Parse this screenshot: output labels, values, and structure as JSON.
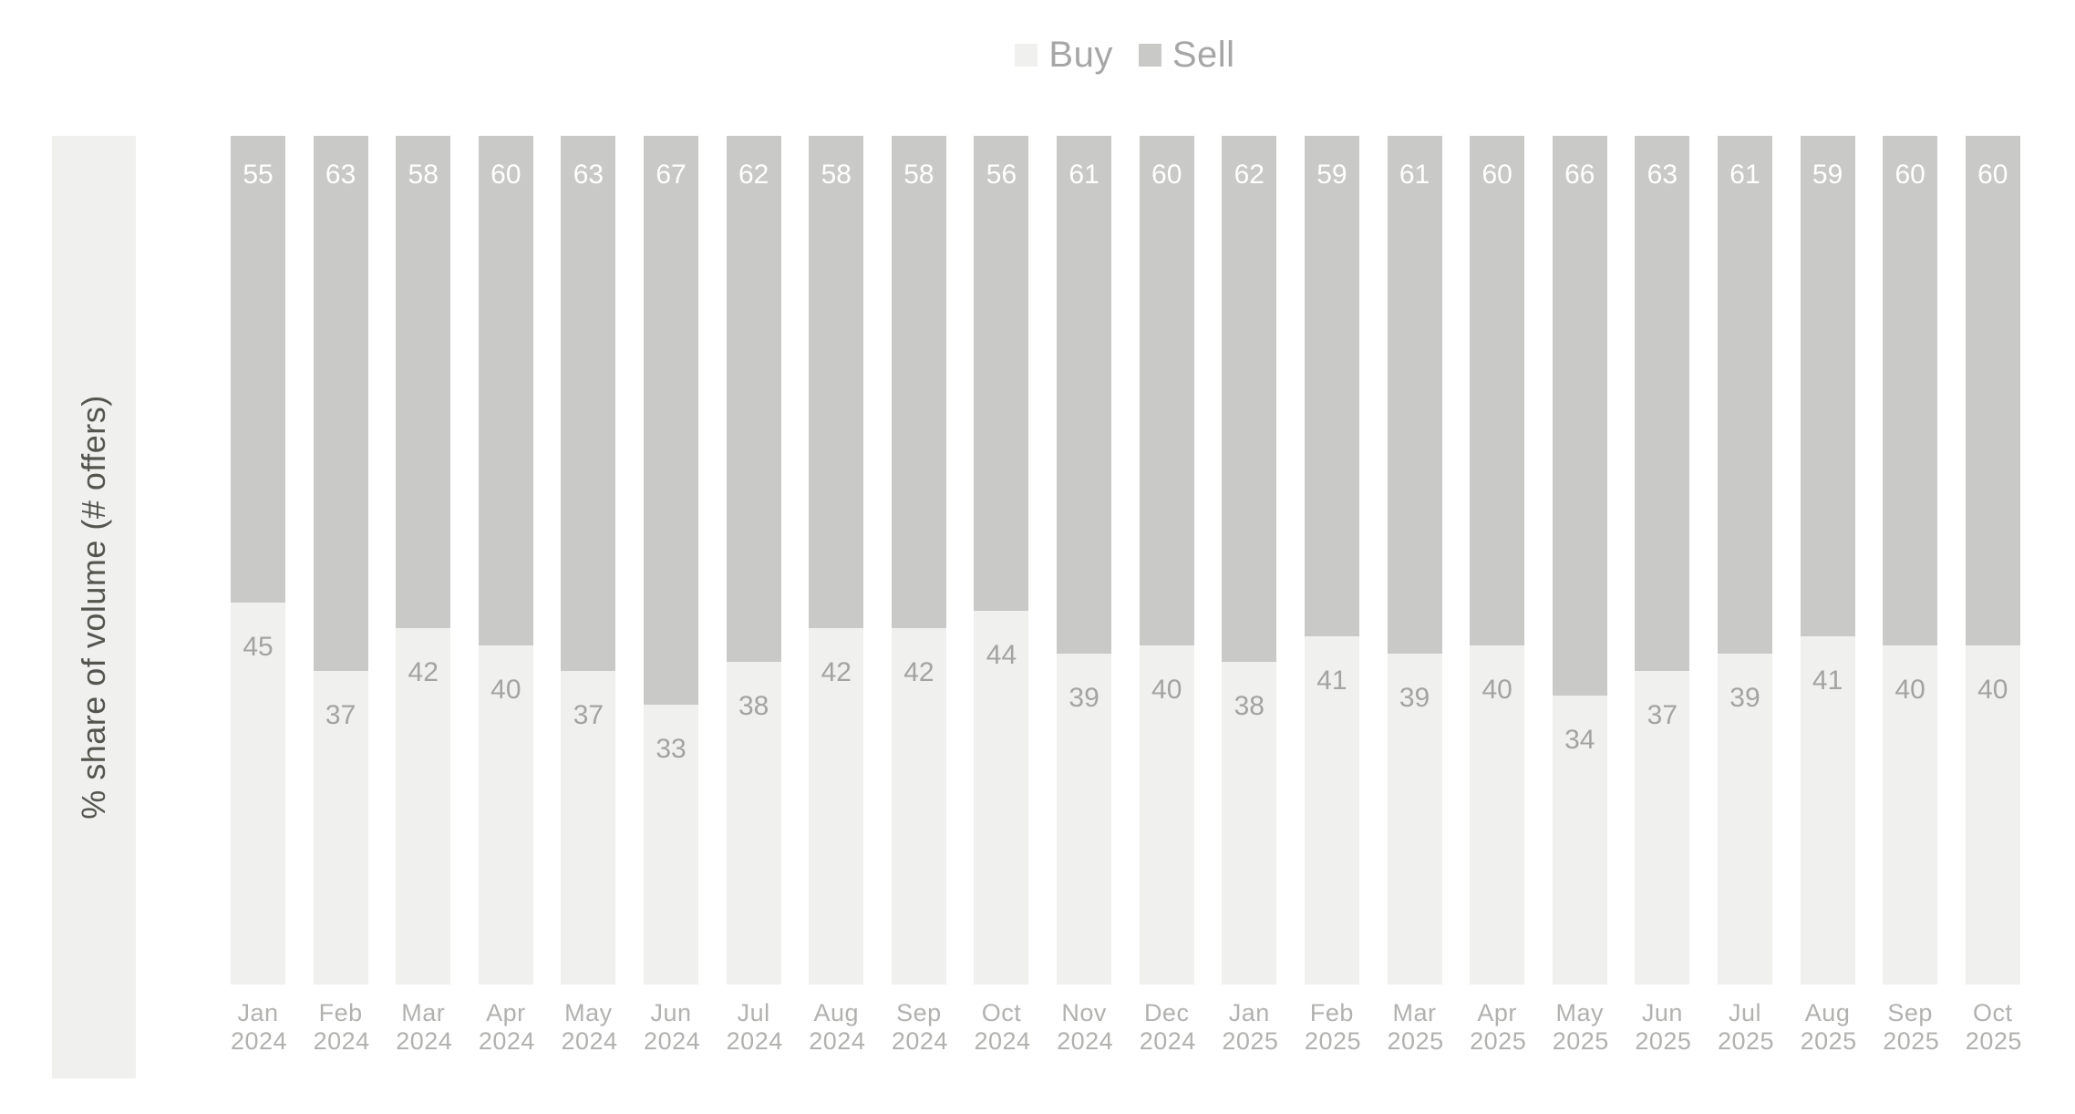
{
  "legend": {
    "items": [
      {
        "name": "Buy",
        "swatch_color": "#f0f0ee"
      },
      {
        "name": "Sell",
        "swatch_color": "#c9c9c7"
      }
    ]
  },
  "y_axis": {
    "label": "% share of volume (# offers)"
  },
  "chart_data": {
    "type": "bar",
    "stacked": true,
    "unit": "%",
    "title": "",
    "xlabel": "",
    "ylabel": "% share of volume (# offers)",
    "ylim": [
      0,
      100
    ],
    "grid": false,
    "legend_position": "top-center",
    "value_labels": "inside-top-of-each-segment",
    "categories": [
      "Jan 2024",
      "Feb 2024",
      "Mar 2024",
      "Apr 2024",
      "May 2024",
      "Jun 2024",
      "Jul 2024",
      "Aug 2024",
      "Sep 2024",
      "Oct 2024",
      "Nov 2024",
      "Dec 2024",
      "Jan 2025",
      "Feb 2025",
      "Mar 2025",
      "Apr 2025",
      "May 2025",
      "Jun 2025",
      "Jul 2025",
      "Aug 2025",
      "Sep 2025",
      "Oct 2025"
    ],
    "series": [
      {
        "name": "Buy",
        "color": "#f0f0ee",
        "values": [
          45,
          37,
          42,
          40,
          37,
          33,
          38,
          42,
          42,
          44,
          39,
          40,
          38,
          41,
          39,
          40,
          34,
          37,
          39,
          41,
          40,
          40
        ]
      },
      {
        "name": "Sell",
        "color": "#c9c9c7",
        "values": [
          55,
          63,
          58,
          60,
          63,
          67,
          62,
          58,
          58,
          56,
          61,
          60,
          62,
          59,
          61,
          60,
          66,
          63,
          61,
          59,
          60,
          60
        ]
      }
    ]
  },
  "colors": {
    "buy_segment": "#f0f0ee",
    "sell_segment": "#c9c9c7",
    "sell_value_label": "#ffffff",
    "buy_value_label": "#a3a3a1",
    "tick_label": "#b1b1af",
    "legend_text": "#a6a6a6",
    "y_axis_text": "#55554f",
    "y_axis_band": "#f0f0ee",
    "background": "#ffffff"
  }
}
